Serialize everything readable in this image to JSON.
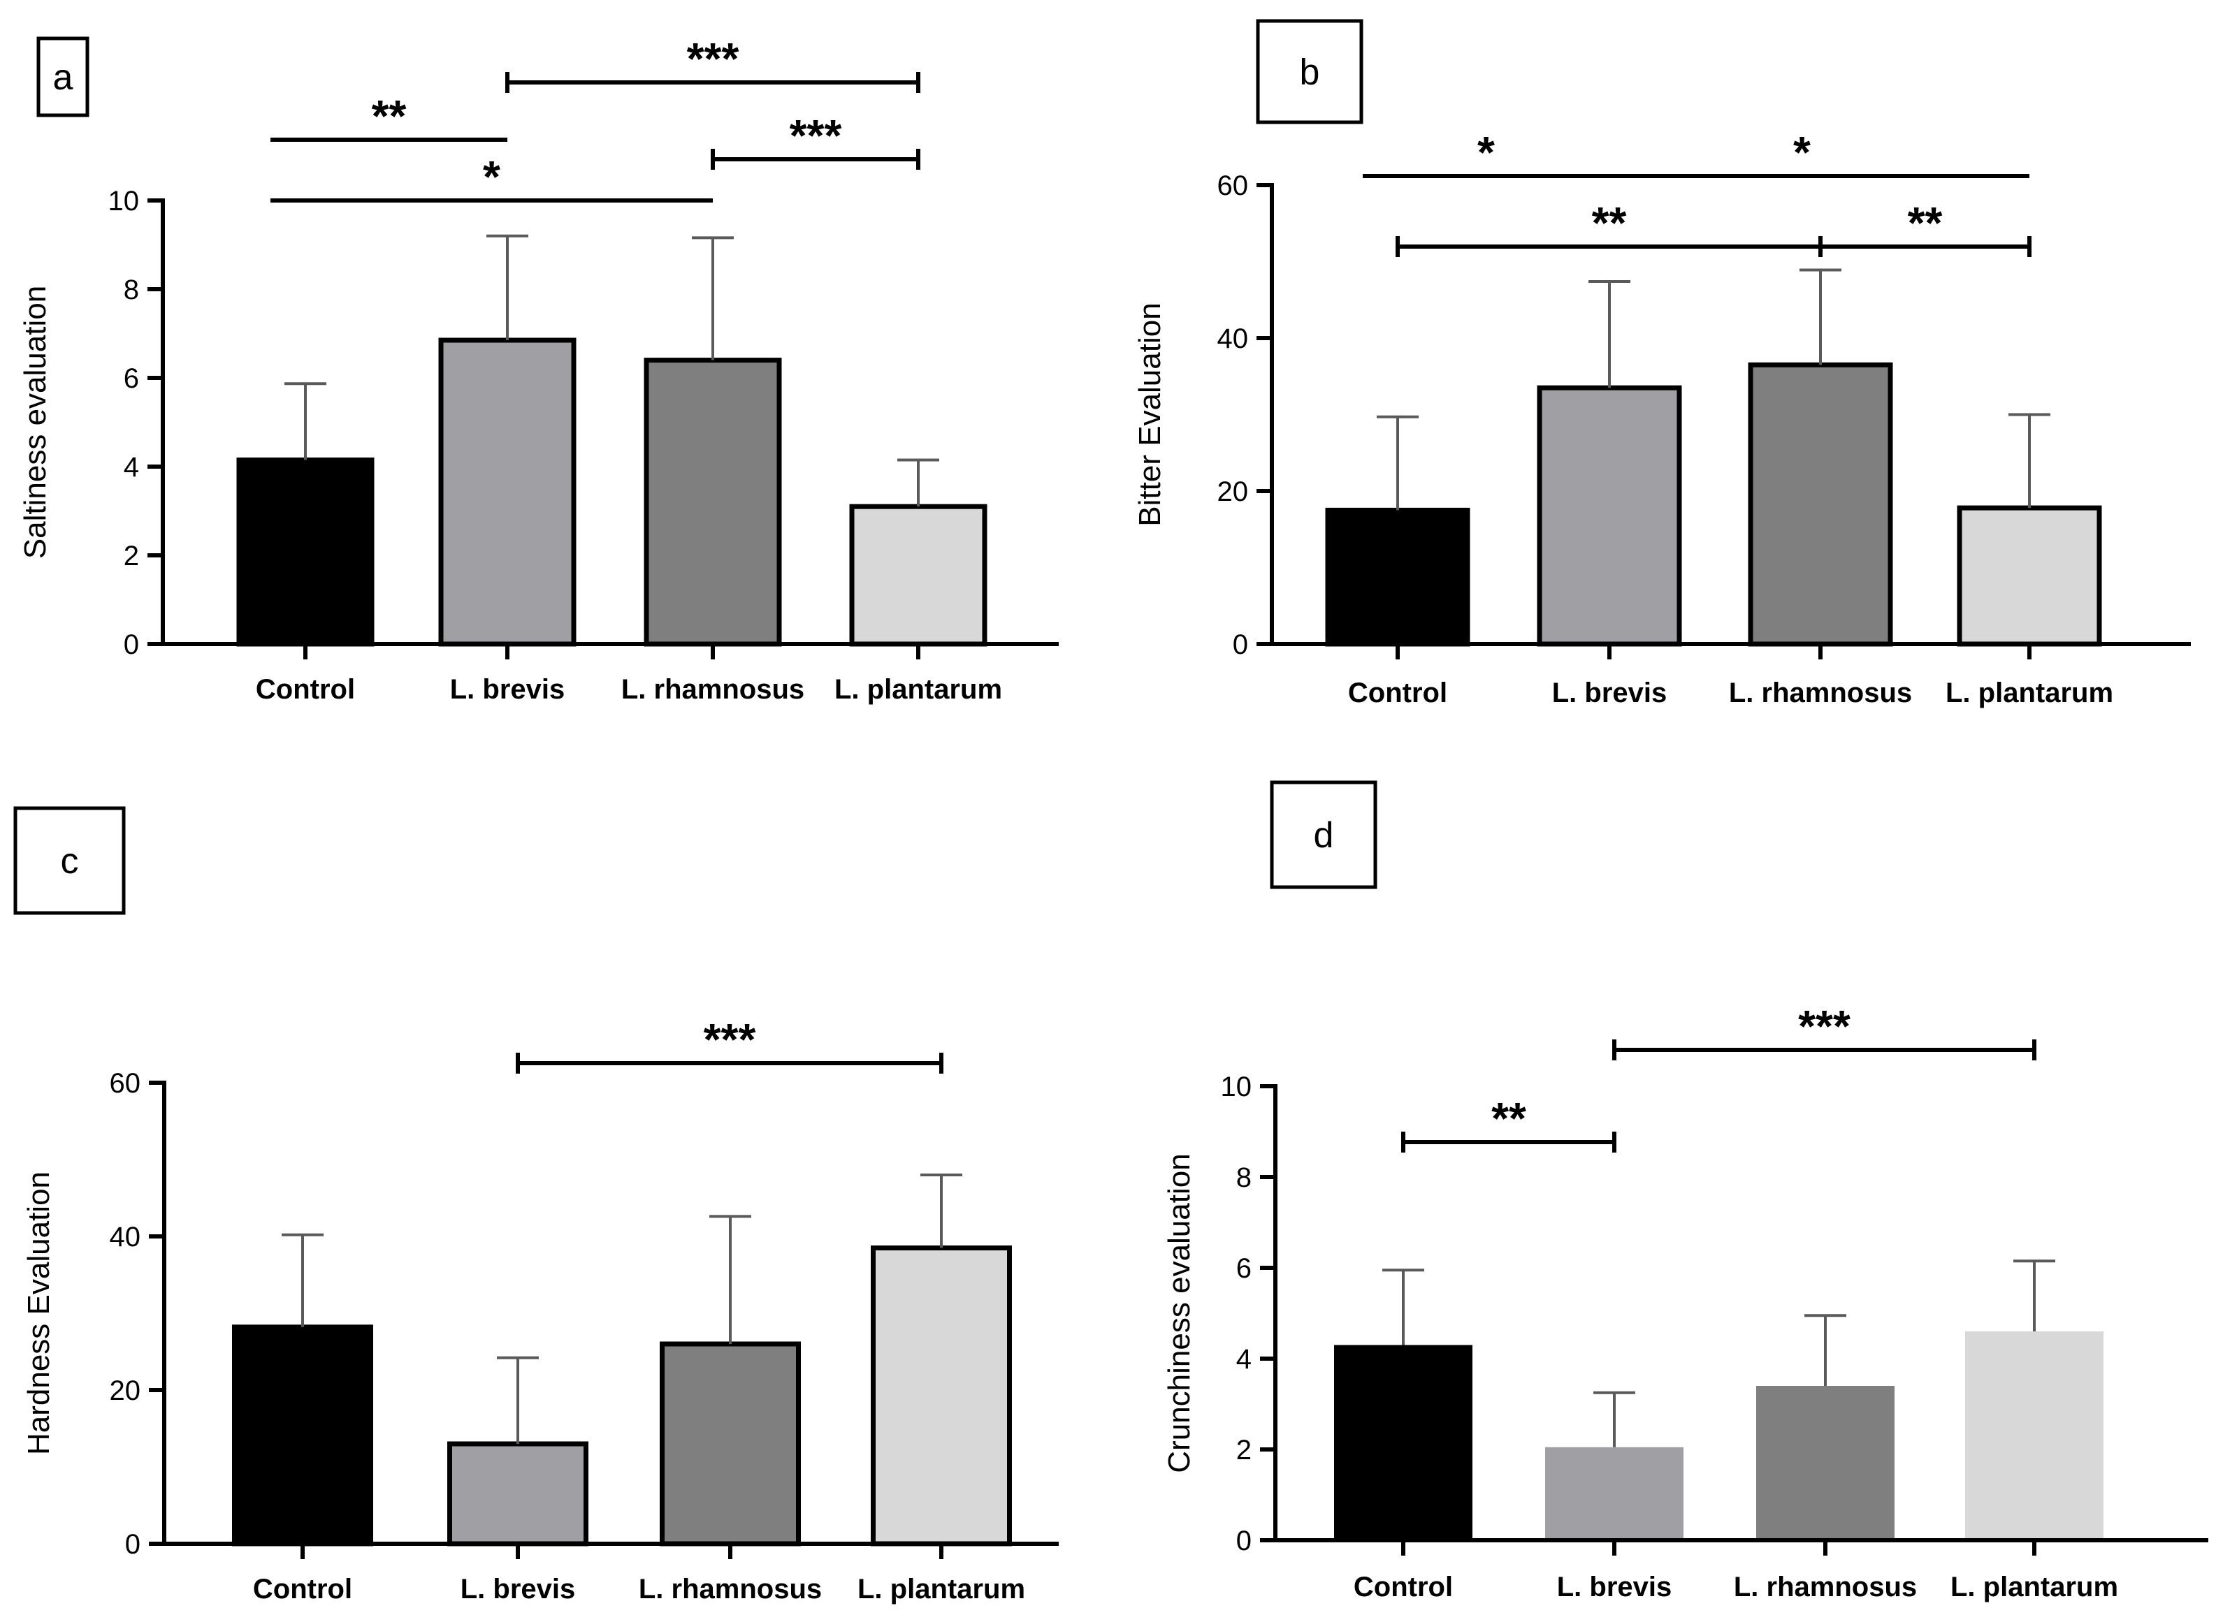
{
  "colors": {
    "Control": "#000000",
    "L. brevis": "#a0a0a4",
    "L. rhamnosus": "#7f7f7f",
    "L. plantarum": "#d8d8d8"
  },
  "chart_data": [
    {
      "panel": "a",
      "type": "bar",
      "ylabel": "Saltiness evaluation",
      "categories": [
        "Control",
        "L. brevis",
        "L. rhamnosus",
        "L. plantarum"
      ],
      "values": [
        4.15,
        6.85,
        6.4,
        3.1
      ],
      "errors": [
        1.72,
        2.35,
        2.76,
        1.05
      ],
      "ylim": [
        0,
        10
      ],
      "yticks": [
        0,
        2,
        4,
        6,
        8,
        10
      ],
      "outlined": true,
      "significance": [
        {
          "from": 0,
          "to": 1,
          "label": "**",
          "level": 2,
          "caps": false
        },
        {
          "from": 1,
          "to": 3,
          "label": "***",
          "level": 3,
          "caps": true
        },
        {
          "from": 0,
          "to": 2,
          "label": "*",
          "level": 1,
          "caps": false
        },
        {
          "from": 2,
          "to": 3,
          "label": "***",
          "level": 2,
          "caps": true
        }
      ]
    },
    {
      "panel": "b",
      "type": "bar",
      "ylabel": "Bitter Evaluation",
      "categories": [
        "Control",
        "L. brevis",
        "L. rhamnosus",
        "L. plantarum"
      ],
      "values": [
        17.5,
        33.5,
        36.5,
        17.8
      ],
      "errors": [
        12.2,
        13.9,
        12.4,
        12.2
      ],
      "ylim": [
        0,
        60
      ],
      "yticks": [
        0,
        20,
        40,
        60
      ],
      "outlined": true,
      "significance": [
        {
          "from": 0,
          "to": 1,
          "label": "*",
          "level": 2,
          "caps": false
        },
        {
          "from": 1,
          "to": 3,
          "label": "*",
          "level": 2,
          "caps": false
        },
        {
          "from": 0,
          "to": 2,
          "label": "**",
          "level": 1,
          "caps": true
        },
        {
          "from": 2,
          "to": 3,
          "label": "**",
          "level": 1,
          "caps": true
        }
      ]
    },
    {
      "panel": "c",
      "type": "bar",
      "ylabel": "Hardness Evaluation",
      "categories": [
        "Control",
        "L. brevis",
        "L. rhamnosus",
        "L. plantarum"
      ],
      "values": [
        28.2,
        13.0,
        26.0,
        38.5
      ],
      "errors": [
        12.0,
        11.2,
        16.6,
        9.5
      ],
      "ylim": [
        0,
        60
      ],
      "yticks": [
        0,
        20,
        40,
        60
      ],
      "outlined": true,
      "significance": [
        {
          "from": 1,
          "to": 3,
          "label": "***",
          "level": 1,
          "caps": true
        }
      ]
    },
    {
      "panel": "d",
      "type": "bar",
      "ylabel": "Crunchiness evaluation",
      "categories": [
        "Control",
        "L. brevis",
        "L. rhamnosus",
        "L. plantarum"
      ],
      "values": [
        4.3,
        2.05,
        3.4,
        4.6
      ],
      "errors": [
        1.65,
        1.2,
        1.55,
        1.55
      ],
      "ylim": [
        0,
        10
      ],
      "yticks": [
        0,
        2,
        4,
        6,
        8,
        10
      ],
      "outlined": false,
      "significance": [
        {
          "from": 0,
          "to": 1,
          "label": "**",
          "level": 1,
          "caps": true
        },
        {
          "from": 1,
          "to": 3,
          "label": "***",
          "level": 2,
          "caps": true
        }
      ]
    }
  ]
}
